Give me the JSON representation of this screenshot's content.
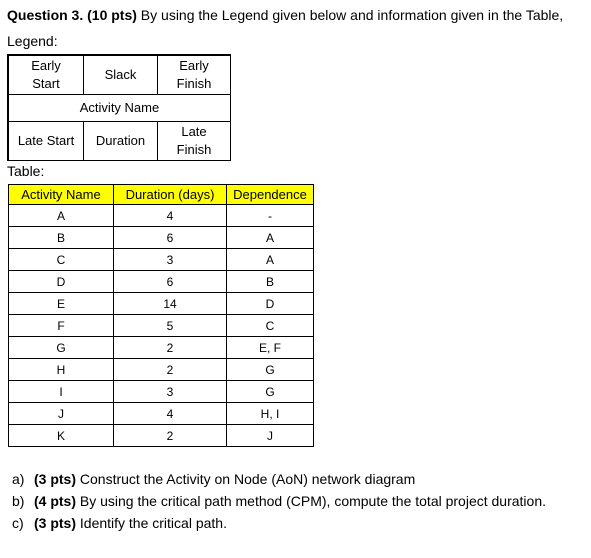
{
  "question": {
    "label": "Question 3. (10 pts)",
    "text": " By using the Legend given below and information given in the Table,"
  },
  "legend_label": "Legend:",
  "legend": {
    "early_start": "Early\nStart",
    "slack": "Slack",
    "early_finish": "Early\nFinish",
    "activity_name": "Activity Name",
    "late_start": "Late Start",
    "duration": "Duration",
    "late_finish": "Late\nFinish"
  },
  "table_label": "Table:",
  "table": {
    "headers": [
      "Activity Name",
      "Duration (days)",
      "Dependence"
    ],
    "rows": [
      [
        "A",
        "4",
        "-"
      ],
      [
        "B",
        "6",
        "A"
      ],
      [
        "C",
        "3",
        "A"
      ],
      [
        "D",
        "6",
        "B"
      ],
      [
        "E",
        "14",
        "D"
      ],
      [
        "F",
        "5",
        "C"
      ],
      [
        "G",
        "2",
        "E, F"
      ],
      [
        "H",
        "2",
        "G"
      ],
      [
        "I",
        "3",
        "G"
      ],
      [
        "J",
        "4",
        "H, I"
      ],
      [
        "K",
        "2",
        "J"
      ]
    ],
    "header_color": "#ffff00"
  },
  "parts": [
    {
      "num": "a)",
      "pts": "(3 pts)",
      "text": " Construct the Activity on Node (AoN) network diagram"
    },
    {
      "num": "b)",
      "pts": "(4 pts)",
      "text": " By using the critical path method (CPM), compute the total project duration."
    },
    {
      "num": "c)",
      "pts": "(3 pts)",
      "text": " Identify the critical path."
    }
  ]
}
